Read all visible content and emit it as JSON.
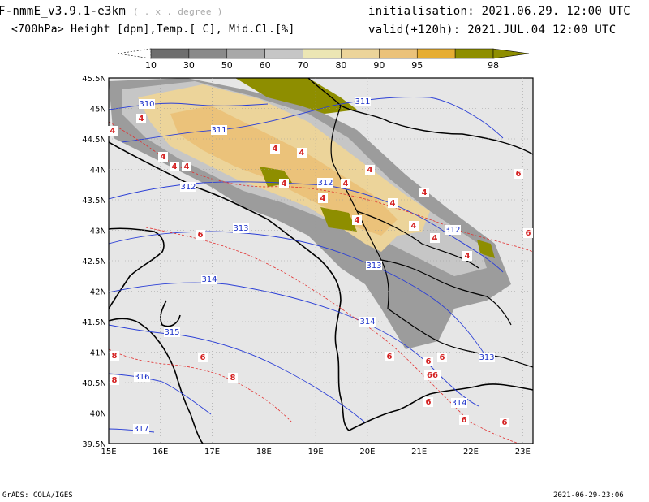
{
  "header": {
    "model_title": "F-nmmE_v3.9.1-e3km",
    "model_units": "( . x . degree )",
    "fields": "<700hPa> Height [dpm],Temp.[ C], Mid.Cl.[%]",
    "initialisation": "initialisation: 2021.06.29.  12:00 UTC",
    "valid": "valid(+120h): 2021.JUL.04  12:00 UTC"
  },
  "colorbar": {
    "labels": [
      "10",
      "30",
      "50",
      "60",
      "70",
      "80",
      "90",
      "95",
      "98"
    ],
    "colors": [
      "#6e6e6e",
      "#8a8a8a",
      "#a8a8a8",
      "#c6c6c6",
      "#ece6b4",
      "#ecd49a",
      "#ebc27a",
      "#e6ad32",
      "#8e8e00"
    ]
  },
  "map": {
    "lat_ticks": [
      "45.5N",
      "45N",
      "44.5N",
      "44N",
      "43.5N",
      "43N",
      "42.5N",
      "42N",
      "41.5N",
      "41N",
      "40.5N",
      "40N",
      "39.5N"
    ],
    "lon_ticks": [
      "15E",
      "16E",
      "17E",
      "18E",
      "19E",
      "20E",
      "21E",
      "22E",
      "23E"
    ],
    "height_labels": [
      "310",
      "311",
      "311",
      "312",
      "312",
      "312",
      "313",
      "313",
      "314",
      "314",
      "313",
      "315",
      "316",
      "317",
      "314"
    ],
    "temp_labels": [
      "4",
      "4",
      "4",
      "4",
      "4",
      "4",
      "4",
      "4",
      "4",
      "4",
      "4",
      "4",
      "4",
      "4",
      "4",
      "4",
      "4",
      "6",
      "6",
      "6",
      "8",
      "8",
      "8",
      "6",
      "6",
      "6",
      "66",
      "6",
      "6",
      "6",
      "6"
    ]
  },
  "footer": {
    "left": "GrADS: COLA/IGES",
    "right": "2021-06-29-23:06"
  }
}
